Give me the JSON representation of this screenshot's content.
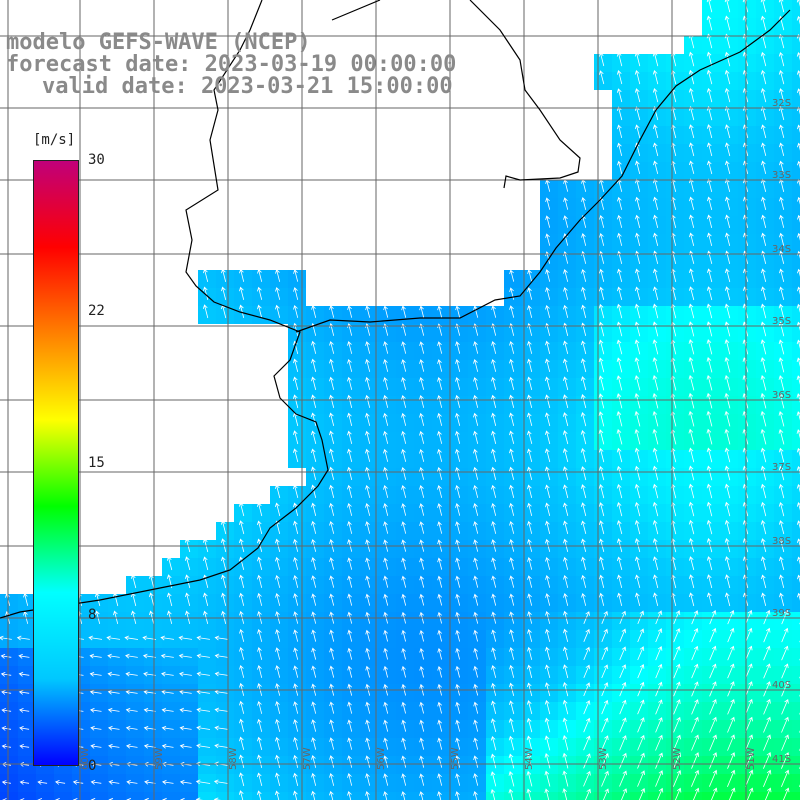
{
  "title": {
    "model": "modelo GEFS-WAVE (NCEP)",
    "forecast": "forecast date: 2023-03-19 00:00:00",
    "valid": "valid date: 2023-03-21 15:00:00"
  },
  "colorbar": {
    "unit": "[m/s]",
    "ticks": [
      "30",
      "22",
      "15",
      "8",
      "0"
    ],
    "colors": [
      "#0000ff",
      "#00c8ff",
      "#00ffff",
      "#00ff00",
      "#ffff00",
      "#ff8000",
      "#ff0000",
      "#c0007a"
    ]
  },
  "lat_labels": [
    "32S",
    "33S",
    "34S",
    "35S",
    "36S",
    "37S",
    "38S",
    "39S",
    "40S",
    "41S"
  ],
  "lon_labels": [
    "60W",
    "59W",
    "58W",
    "57W",
    "56W",
    "55W",
    "54W",
    "53W",
    "52W",
    "51W"
  ],
  "colors": {
    "land": "#ffffff",
    "grid": "#666666",
    "coast": "#000000",
    "arrow": "#ffffff",
    "title": "#8a8a8a"
  }
}
